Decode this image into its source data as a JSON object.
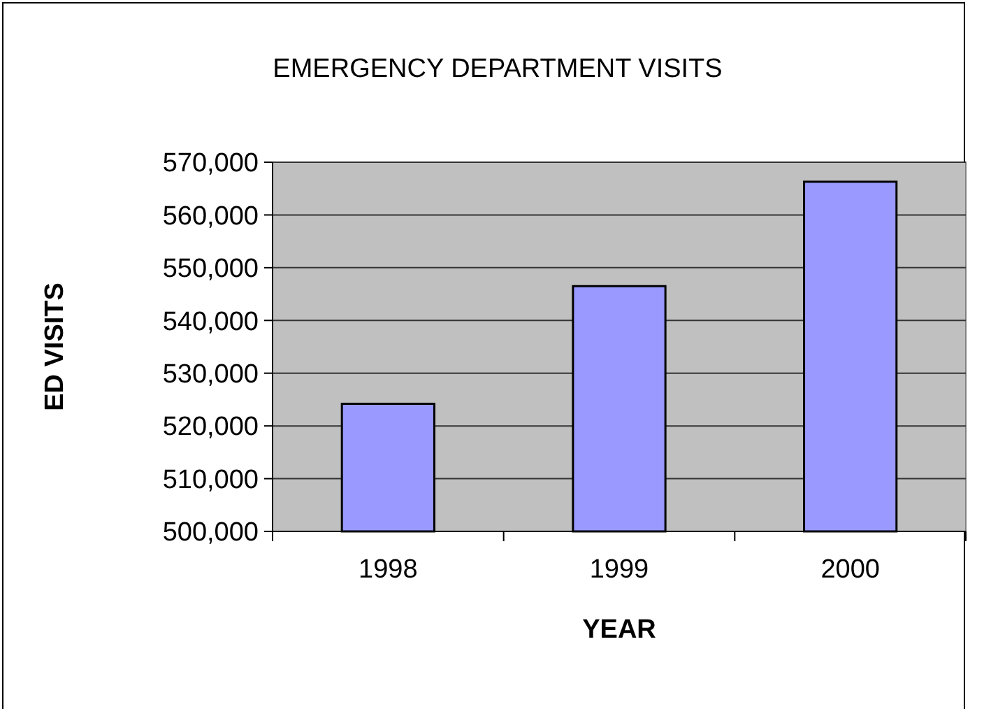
{
  "chart_data": {
    "type": "bar",
    "title": "EMERGENCY DEPARTMENT VISITS",
    "xlabel": "YEAR",
    "ylabel": "ED VISITS",
    "categories": [
      "1998",
      "1999",
      "2000"
    ],
    "values": [
      524200,
      546500,
      566300
    ],
    "color": "#9999ff",
    "ylim": [
      500000,
      570000
    ],
    "yticks": [
      {
        "value": 500000,
        "label": "500,000"
      },
      {
        "value": 510000,
        "label": "510,000"
      },
      {
        "value": 520000,
        "label": "520,000"
      },
      {
        "value": 530000,
        "label": "530,000"
      },
      {
        "value": 540000,
        "label": "540,000"
      },
      {
        "value": 550000,
        "label": "550,000"
      },
      {
        "value": 560000,
        "label": "560,000"
      },
      {
        "value": 570000,
        "label": "570,000"
      }
    ],
    "grid": "y"
  }
}
